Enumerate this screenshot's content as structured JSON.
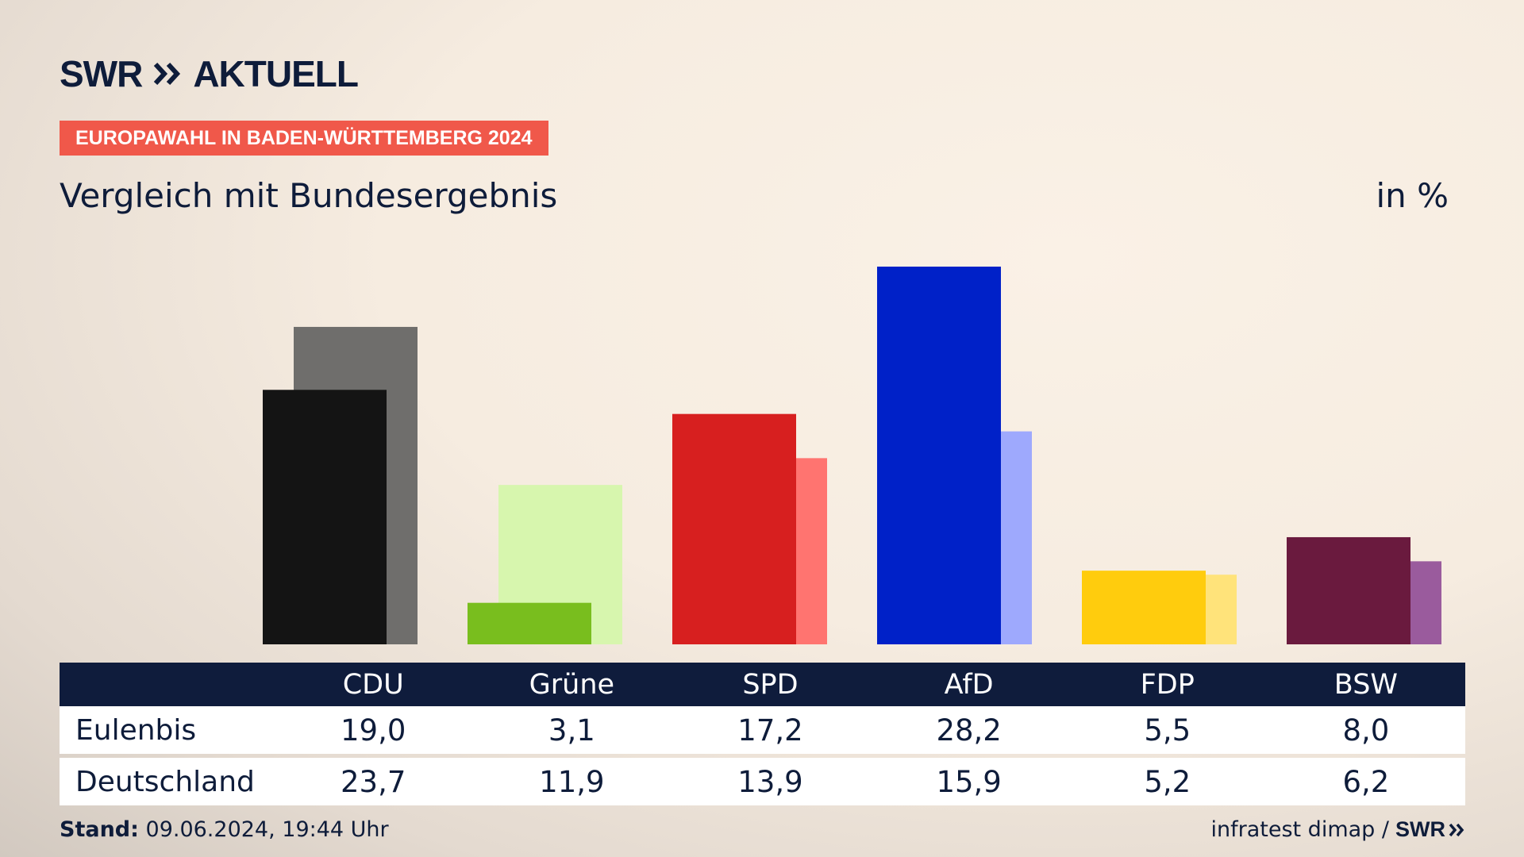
{
  "header": {
    "logo_text": "SWR",
    "logo_suffix": "AKTUELL",
    "kicker": "EUROPAWAHL IN BADEN-WÜRTTEMBERG 2024",
    "subtitle": "Vergleich mit Bundesergebnis",
    "unit": "in %"
  },
  "table": {
    "rows": [
      {
        "label": "Eulenbis",
        "values": [
          "19,0",
          "3,1",
          "17,2",
          "28,2",
          "5,5",
          "8,0"
        ]
      },
      {
        "label": "Deutschland",
        "values": [
          "23,7",
          "11,9",
          "13,9",
          "15,9",
          "5,2",
          "6,2"
        ]
      }
    ]
  },
  "footer": {
    "stand_label": "Stand:",
    "stand_value": "09.06.2024, 19:44 Uhr",
    "source": "infratest dimap /",
    "source_logo": "SWR"
  },
  "chart_data": {
    "type": "bar",
    "categories": [
      "CDU",
      "Grüne",
      "SPD",
      "AfD",
      "FDP",
      "BSW"
    ],
    "series": [
      {
        "name": "Eulenbis",
        "values": [
          19.0,
          3.1,
          17.2,
          28.2,
          5.5,
          8.0
        ],
        "colors": [
          "#141414",
          "#79be1e",
          "#d71f1f",
          "#0021c8",
          "#ffcc0d",
          "#6a1a3e"
        ]
      },
      {
        "name": "Deutschland",
        "values": [
          23.7,
          11.9,
          13.9,
          15.9,
          5.2,
          6.2
        ],
        "colors": [
          "#6f6e6c",
          "#d7f6ae",
          "#ff7470",
          "#9ea9fd",
          "#ffe37a",
          "#9a5b9d"
        ]
      }
    ],
    "ylim": [
      0,
      28.2
    ]
  }
}
